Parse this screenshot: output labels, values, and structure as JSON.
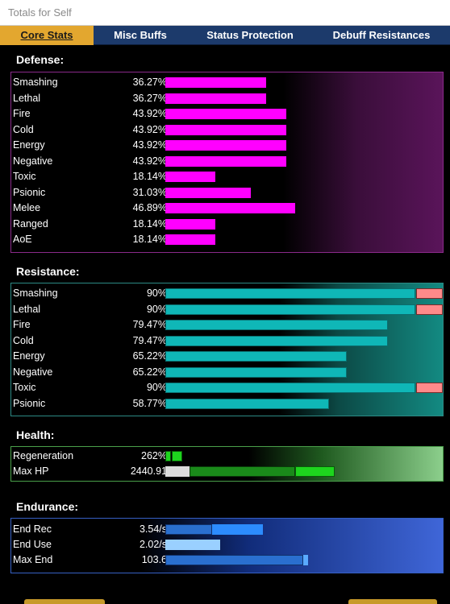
{
  "window": {
    "title": "Totals for Self"
  },
  "tabs": [
    {
      "label": "Core Stats",
      "active": true
    },
    {
      "label": "Misc Buffs",
      "active": false
    },
    {
      "label": "Status Protection",
      "active": false
    },
    {
      "label": "Debuff Resistances",
      "active": false
    }
  ],
  "defense": {
    "title": "Defense:",
    "rows": [
      {
        "label": "Smashing",
        "value": "36.27%",
        "pct": 36.27
      },
      {
        "label": "Lethal",
        "value": "36.27%",
        "pct": 36.27
      },
      {
        "label": "Fire",
        "value": "43.92%",
        "pct": 43.92
      },
      {
        "label": "Cold",
        "value": "43.92%",
        "pct": 43.92
      },
      {
        "label": "Energy",
        "value": "43.92%",
        "pct": 43.92
      },
      {
        "label": "Negative",
        "value": "43.92%",
        "pct": 43.92
      },
      {
        "label": "Toxic",
        "value": "18.14%",
        "pct": 18.14
      },
      {
        "label": "Psionic",
        "value": "31.03%",
        "pct": 31.03
      },
      {
        "label": "Melee",
        "value": "46.89%",
        "pct": 46.89
      },
      {
        "label": "Ranged",
        "value": "18.14%",
        "pct": 18.14
      },
      {
        "label": "AoE",
        "value": "18.14%",
        "pct": 18.14
      }
    ]
  },
  "resistance": {
    "title": "Resistance:",
    "rows": [
      {
        "label": "Smashing",
        "value": "90%",
        "pct": 90,
        "capped": true
      },
      {
        "label": "Lethal",
        "value": "90%",
        "pct": 90,
        "capped": true
      },
      {
        "label": "Fire",
        "value": "79.47%",
        "pct": 79.47,
        "capped": false
      },
      {
        "label": "Cold",
        "value": "79.47%",
        "pct": 79.47,
        "capped": false
      },
      {
        "label": "Energy",
        "value": "65.22%",
        "pct": 65.22,
        "capped": false
      },
      {
        "label": "Negative",
        "value": "65.22%",
        "pct": 65.22,
        "capped": false
      },
      {
        "label": "Toxic",
        "value": "90%",
        "pct": 90,
        "capped": true
      },
      {
        "label": "Psionic",
        "value": "58.77%",
        "pct": 58.77,
        "capped": false
      }
    ]
  },
  "health": {
    "title": "Health:",
    "rows": [
      {
        "label": "Regeneration",
        "value": "262%"
      },
      {
        "label": "Max HP",
        "value": "2440.91"
      }
    ]
  },
  "endurance": {
    "title": "Endurance:",
    "rows": [
      {
        "label": "End Rec",
        "value": "3.54/s"
      },
      {
        "label": "End Use",
        "value": "2.02/s"
      },
      {
        "label": "Max End",
        "value": "103.6"
      }
    ]
  },
  "colors": {
    "defense_bar": "#ff00ff",
    "resistance_bar": "#0fb7b7",
    "resistance_cap": "#ff8a8a",
    "tab_active": "#e3a72f",
    "tab_bar": "#1c3a6b"
  }
}
